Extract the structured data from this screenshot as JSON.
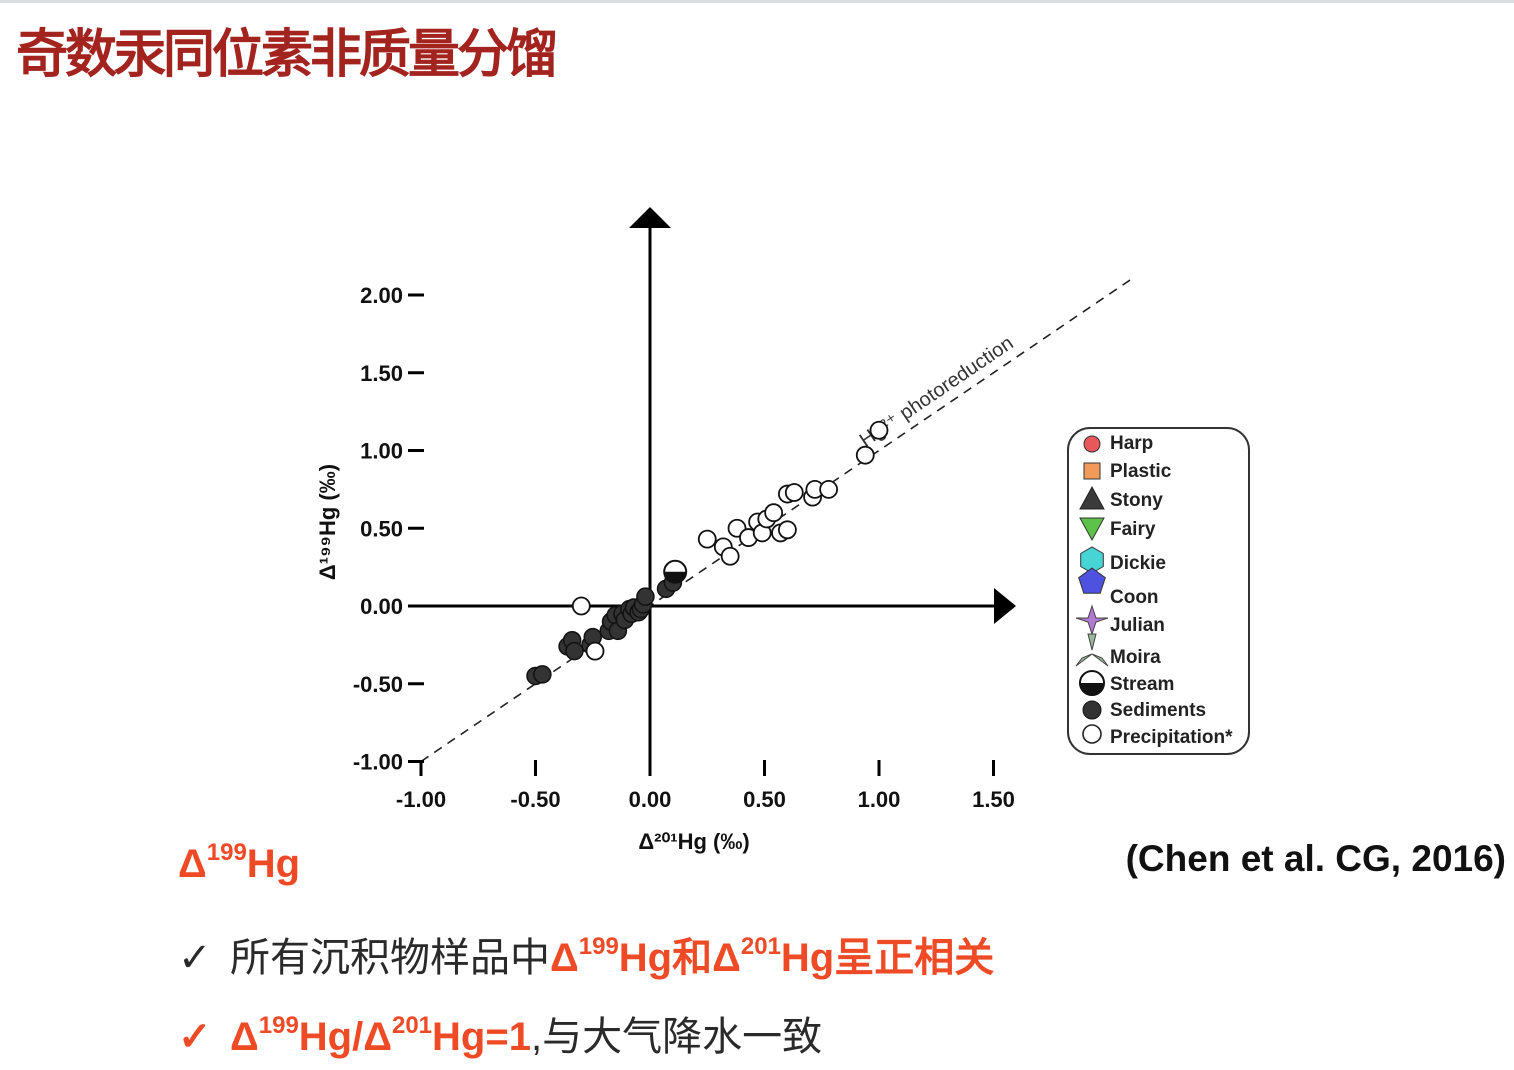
{
  "slide": {
    "title": "奇数汞同位素非质量分馏",
    "heading_delta": "Δ",
    "heading_sup": "199",
    "heading_hg": "Hg",
    "citation": "(Chen et al. CG, 2016)",
    "bullet1": {
      "check": "✓",
      "text_prefix": "所有沉积物样品中",
      "red_delta1": "Δ",
      "red_sup1": "199",
      "red_mid": "Hg和Δ",
      "red_sup2": "201",
      "red_end": "Hg呈正相关"
    },
    "bullet2": {
      "check": "✓",
      "red_delta1": "Δ",
      "red_sup1": "199",
      "red_mid": "Hg/Δ",
      "red_sup2": "201",
      "red_end": "Hg=1",
      "text_suffix": ",与大气降水一致"
    },
    "colors": {
      "title": "#a3231f",
      "accent": "#ef4a26"
    }
  },
  "chart_data": {
    "type": "scatter",
    "xlabel": "Δ²⁰¹Hg (‰)",
    "ylabel": "Δ¹⁹⁹Hg (‰)",
    "xlim": [
      -1.0,
      1.6
    ],
    "ylim": [
      -1.0,
      2.0
    ],
    "x_ticks": [
      "-1.00",
      "-0.50",
      "0.00",
      "0.50",
      "1.00",
      "1.50"
    ],
    "x_tick_values": [
      -1.0,
      -0.5,
      0.0,
      0.5,
      1.0,
      1.5
    ],
    "y_ticks": [
      "2.00",
      "1.50",
      "1.00",
      "0.50",
      "0.00",
      "-0.50",
      "-1.00"
    ],
    "y_tick_values": [
      2.0,
      1.5,
      1.0,
      0.5,
      0.0,
      -0.5,
      -1.0
    ],
    "reference_line": {
      "label": "Hg²⁺ photoreduction",
      "slope": 1,
      "style": "dashed",
      "x_range": [
        -1.0,
        2.1
      ]
    },
    "legend_position": "right",
    "legend": [
      "Harp",
      "Plastic",
      "Stony",
      "Fairy",
      "Dickie",
      "Coon",
      "Julian",
      "Moira",
      "Stream",
      "Sediments",
      "Precipitation*"
    ],
    "series": [
      {
        "name": "Sediments",
        "marker": "filled-circle",
        "points": [
          [
            -0.5,
            -0.45
          ],
          [
            -0.47,
            -0.44
          ],
          [
            -0.36,
            -0.26
          ],
          [
            -0.34,
            -0.22
          ],
          [
            -0.33,
            -0.29
          ],
          [
            -0.26,
            -0.25
          ],
          [
            -0.25,
            -0.2
          ],
          [
            -0.18,
            -0.16
          ],
          [
            -0.17,
            -0.1
          ],
          [
            -0.15,
            -0.06
          ],
          [
            -0.14,
            -0.16
          ],
          [
            -0.12,
            -0.05
          ],
          [
            -0.11,
            -0.09
          ],
          [
            -0.09,
            -0.02
          ],
          [
            -0.08,
            -0.05
          ],
          [
            -0.07,
            -0.01
          ],
          [
            -0.05,
            -0.04
          ],
          [
            -0.04,
            -0.02
          ],
          [
            -0.03,
            0.01
          ],
          [
            -0.02,
            0.06
          ],
          [
            0.07,
            0.11
          ],
          [
            0.1,
            0.15
          ]
        ]
      },
      {
        "name": "Precipitation*",
        "marker": "open-circle",
        "points": [
          [
            -0.3,
            0.0
          ],
          [
            -0.24,
            -0.29
          ],
          [
            0.25,
            0.43
          ],
          [
            0.32,
            0.38
          ],
          [
            0.35,
            0.32
          ],
          [
            0.38,
            0.5
          ],
          [
            0.43,
            0.44
          ],
          [
            0.47,
            0.54
          ],
          [
            0.49,
            0.47
          ],
          [
            0.51,
            0.56
          ],
          [
            0.54,
            0.6
          ],
          [
            0.57,
            0.47
          ],
          [
            0.6,
            0.49
          ],
          [
            0.6,
            0.72
          ],
          [
            0.63,
            0.73
          ],
          [
            0.71,
            0.7
          ],
          [
            0.72,
            0.75
          ],
          [
            0.78,
            0.75
          ],
          [
            0.94,
            0.97
          ],
          [
            1.0,
            1.13
          ]
        ]
      },
      {
        "name": "Stream",
        "marker": "half-circle",
        "points": [
          [
            0.11,
            0.22
          ]
        ]
      }
    ]
  }
}
